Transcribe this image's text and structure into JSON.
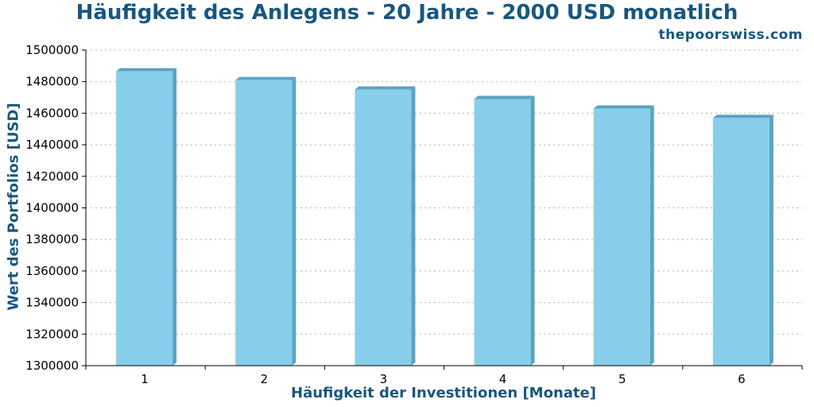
{
  "chart_data": {
    "type": "bar",
    "title": "Häufigkeit des Anlegens - 20 Jahre - 2000 USD monatlich",
    "source": "thepoorswiss.com",
    "xlabel": "Häufigkeit der Investitionen [Monate]",
    "ylabel": "Wert des Portfolios [USD]",
    "categories": [
      "1",
      "2",
      "3",
      "4",
      "5",
      "6"
    ],
    "values": [
      1486500,
      1481000,
      1475000,
      1469000,
      1463000,
      1457000
    ],
    "ylim": [
      1300000,
      1500000
    ],
    "yticks": [
      1300000,
      1320000,
      1340000,
      1360000,
      1380000,
      1400000,
      1420000,
      1440000,
      1460000,
      1480000,
      1500000
    ],
    "grid": true,
    "colors": {
      "bar_face": "#87ceeb",
      "bar_side": "#5ba3c2",
      "title": "#18577f",
      "grid": "#b0b0b0"
    }
  }
}
